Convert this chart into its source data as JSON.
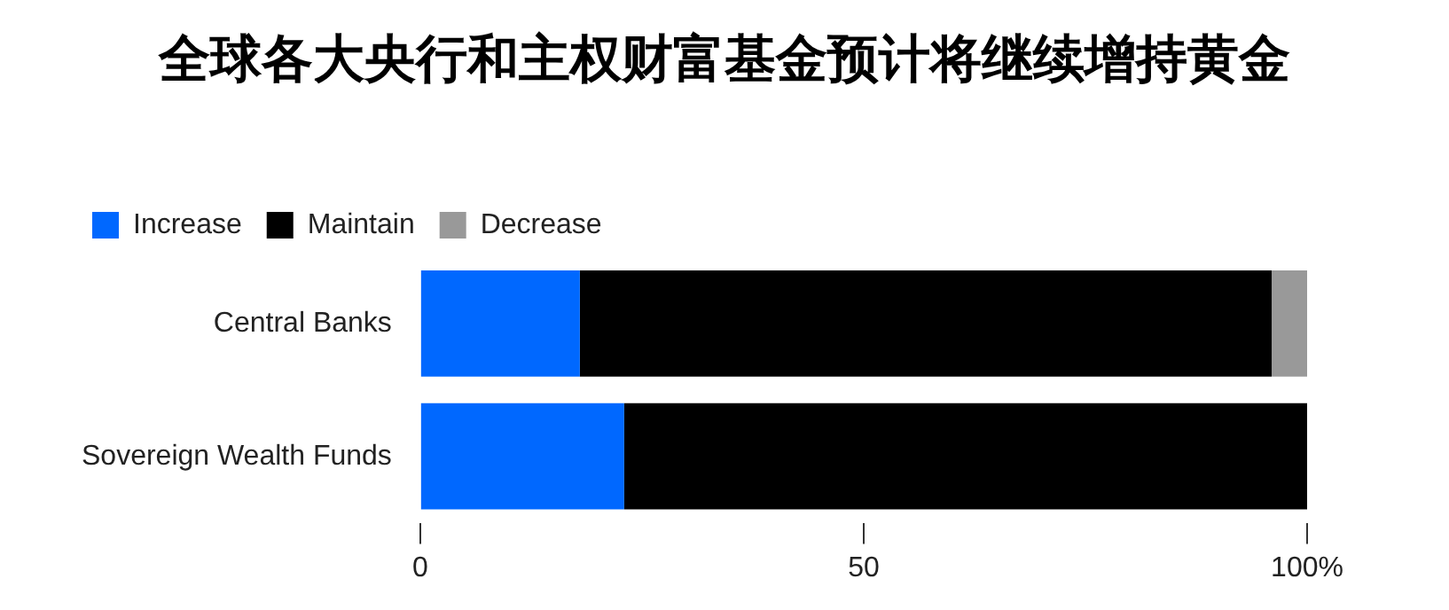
{
  "chart_data": {
    "type": "bar",
    "orientation": "horizontal",
    "stacked": true,
    "title": "全球各大央行和主权财富基金预计将继续增持黄金",
    "categories": [
      "Central Banks",
      "Sovereign Wealth Funds"
    ],
    "series": [
      {
        "name": "Increase",
        "color": "#0068ff",
        "values": [
          18,
          23
        ]
      },
      {
        "name": "Maintain",
        "color": "#000000",
        "values": [
          78,
          77
        ]
      },
      {
        "name": "Decrease",
        "color": "#999999",
        "values": [
          4,
          0
        ]
      }
    ],
    "xlim": [
      0,
      100
    ],
    "xticks": [
      0,
      50,
      {
        "value": 100,
        "label": "100%"
      }
    ],
    "grid": false,
    "legend": "top left"
  }
}
